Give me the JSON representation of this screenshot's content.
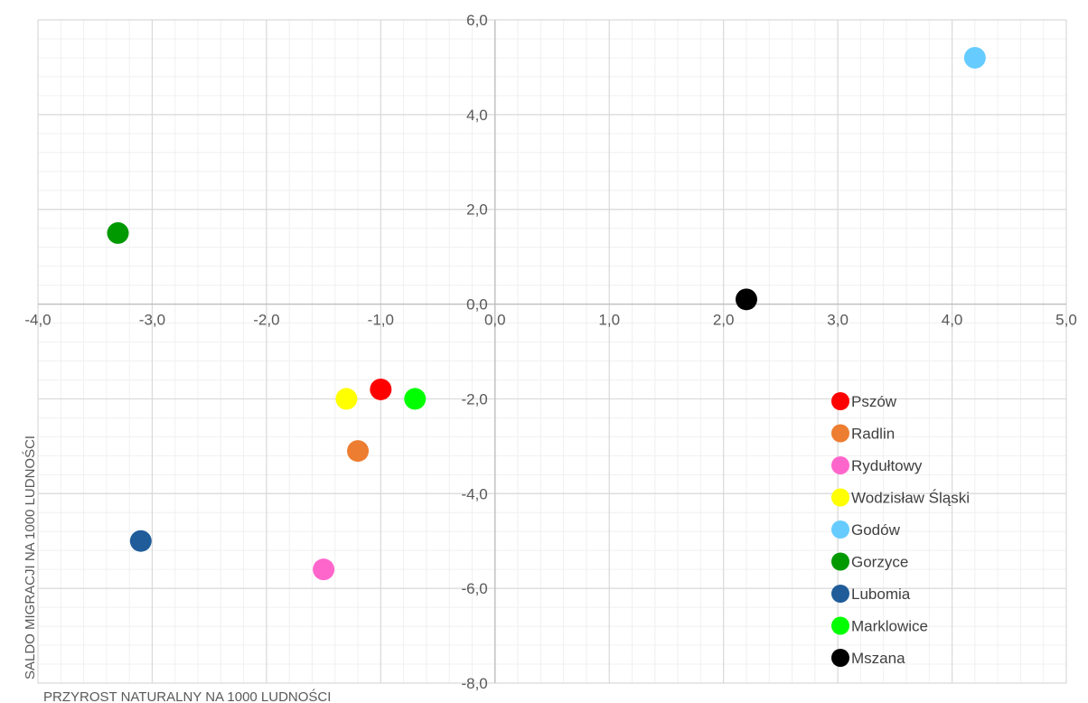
{
  "chart_data": {
    "type": "scatter",
    "xlabel": "PRZYROST NATURALNY NA 1000 LUDNOŚCI",
    "ylabel": "SALDO MIGRACJI NA 1000 LUDNOŚCI",
    "xlim": [
      -4.0,
      5.0
    ],
    "ylim": [
      -8.0,
      6.0
    ],
    "x_major_step": 1.0,
    "y_major_step": 2.0,
    "grid": "major and minor",
    "legend_position": "bottom-right",
    "x_ticks": [
      "-4,0",
      "-3,0",
      "-2,0",
      "-1,0",
      "0,0",
      "1,0",
      "2,0",
      "3,0",
      "4,0",
      "5,0"
    ],
    "y_ticks": [
      "6,0",
      "4,0",
      "2,0",
      "0,0",
      "-2,0",
      "-4,0",
      "-6,0",
      "-8,0"
    ],
    "series": [
      {
        "name": "Pszów",
        "color": "#ff0000",
        "x": -1.0,
        "y": -1.8
      },
      {
        "name": "Radlin",
        "color": "#ed7d31",
        "x": -1.2,
        "y": -3.1
      },
      {
        "name": "Rydułtowy",
        "color": "#ff66cc",
        "x": -1.5,
        "y": -5.6
      },
      {
        "name": "Wodzisław Śląski",
        "color": "#ffff00",
        "x": -1.3,
        "y": -2.0
      },
      {
        "name": "Godów",
        "color": "#66ccff",
        "x": 4.2,
        "y": 5.2
      },
      {
        "name": "Gorzyce",
        "color": "#009900",
        "x": -3.3,
        "y": 1.5
      },
      {
        "name": "Lubomia",
        "color": "#1f5c99",
        "x": -3.1,
        "y": -5.0
      },
      {
        "name": "Marklowice",
        "color": "#00ff00",
        "x": -0.7,
        "y": -2.0
      },
      {
        "name": "Mszana",
        "color": "#000000",
        "x": 2.2,
        "y": 0.1
      }
    ]
  }
}
